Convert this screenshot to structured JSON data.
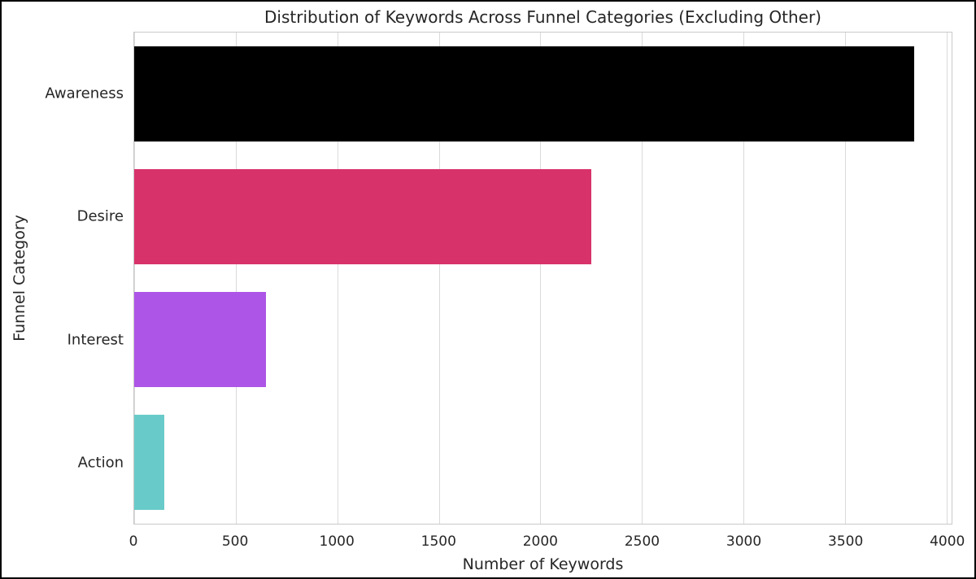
{
  "chart_data": {
    "type": "bar",
    "orientation": "horizontal",
    "title": "Distribution of Keywords Across Funnel Categories (Excluding Other)",
    "xlabel": "Number of Keywords",
    "ylabel": "Funnel Category",
    "categories": [
      "Awareness",
      "Desire",
      "Interest",
      "Action"
    ],
    "values": [
      3840,
      2250,
      650,
      150
    ],
    "bar_colors": [
      "#000000",
      "#d8326b",
      "#ad55e6",
      "#68cbc9"
    ],
    "xlim": [
      0,
      4025
    ],
    "xticks": [
      0,
      500,
      1000,
      1500,
      2000,
      2500,
      3000,
      3500,
      4000
    ],
    "grid": "vertical",
    "legend": "none"
  },
  "style": {
    "background": "#ffffff",
    "figure_border_color": "#000000",
    "grid_color": "#dadada",
    "spine_color": "#c9c9c9",
    "text_color": "#262626"
  }
}
